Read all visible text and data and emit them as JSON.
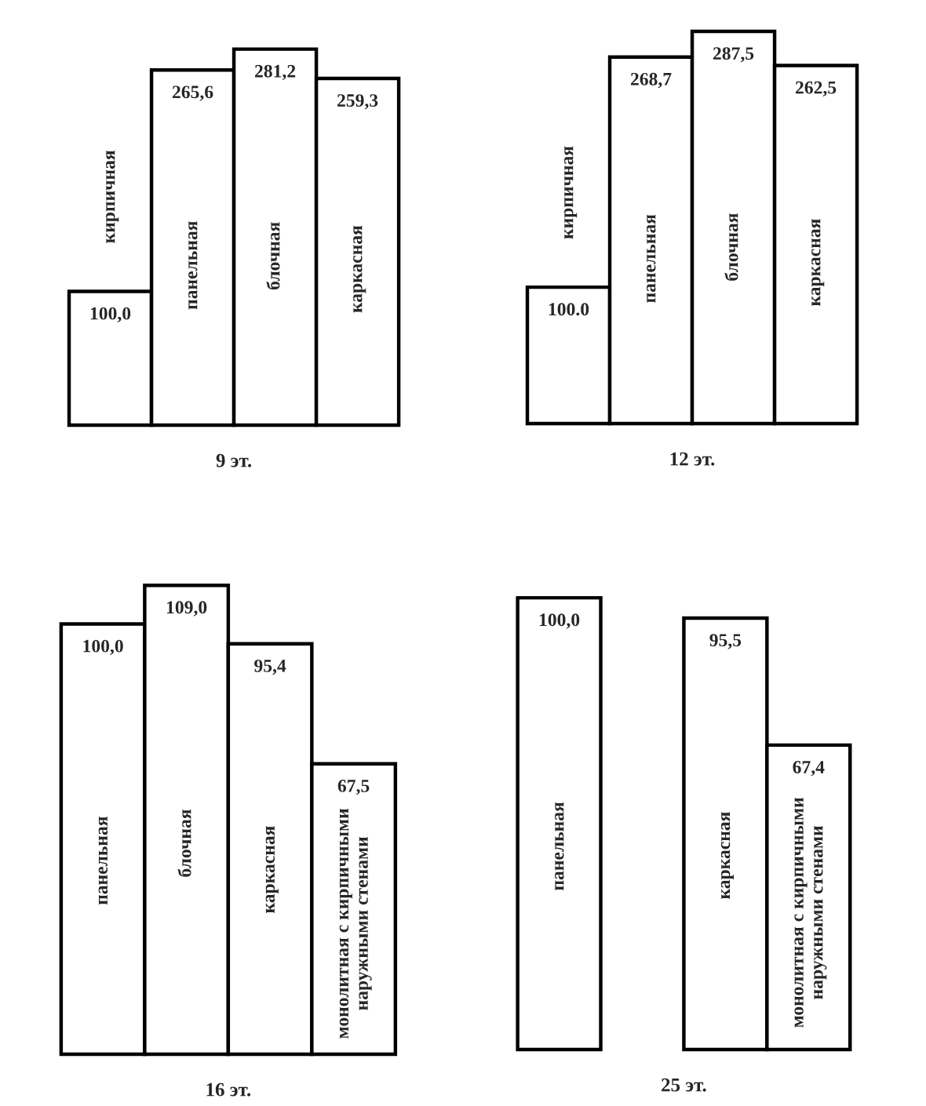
{
  "chart_data": [
    {
      "type": "bar",
      "title": "9 эт.",
      "categories": [
        "кирпичная",
        "панельная",
        "блочная",
        "каркасная"
      ],
      "values": [
        100.0,
        265.6,
        281.2,
        259.3
      ],
      "value_labels": [
        "100,0",
        "265,6",
        "281,2",
        "259,3"
      ],
      "color": "#ffffff",
      "tick_labels": false
    },
    {
      "type": "bar",
      "title": "12 эт.",
      "categories": [
        "кирпичная",
        "панельная",
        "блочная",
        "каркасная"
      ],
      "values": [
        100.0,
        268.7,
        287.5,
        262.5
      ],
      "value_labels": [
        "100.0",
        "268,7",
        "287,5",
        "262,5"
      ],
      "color": "#ffffff",
      "tick_labels": false
    },
    {
      "type": "bar",
      "title": "16 эт.",
      "categories": [
        "панельная",
        "блочная",
        "каркасная",
        "монолитная с кирпичными\nнаружными стенами"
      ],
      "values": [
        100.0,
        109.0,
        95.4,
        67.5
      ],
      "value_labels": [
        "100,0",
        "109,0",
        "95,4",
        "67,5"
      ],
      "color": "#ffffff",
      "tick_labels": false
    },
    {
      "type": "bar",
      "title": "25 эт.",
      "categories": [
        "панельная",
        null,
        "каркасная",
        "монолитная с кирпичными\nнаружными стенами"
      ],
      "values": [
        100.0,
        null,
        95.5,
        67.4
      ],
      "value_labels": [
        "100,0",
        null,
        "95,5",
        "67,4"
      ],
      "color": "#ffffff",
      "tick_labels": false
    }
  ]
}
